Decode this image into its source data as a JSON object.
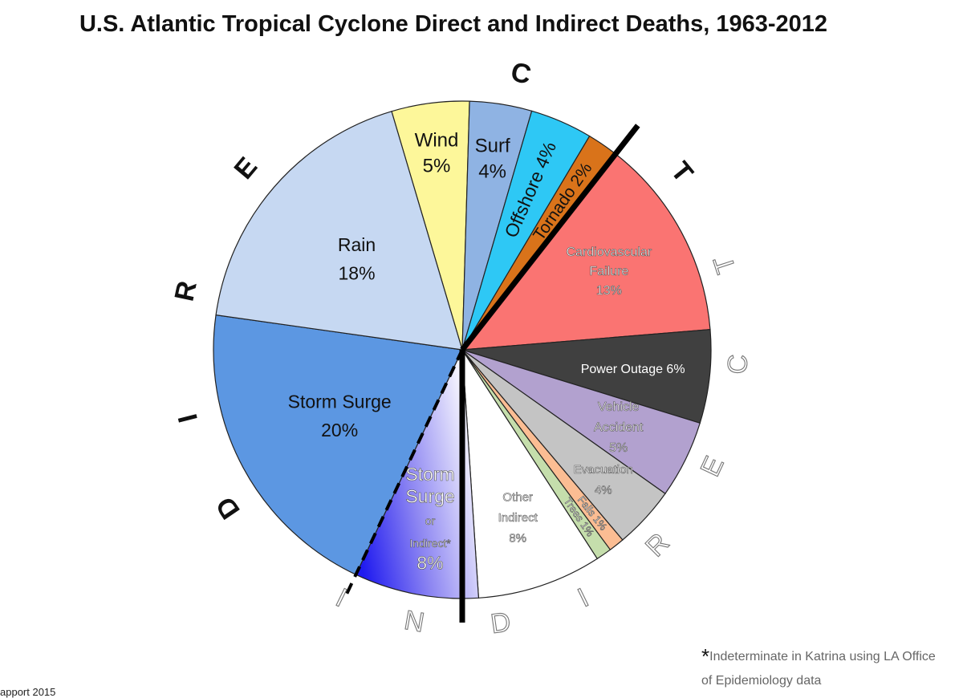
{
  "chart_data": {
    "type": "pie",
    "title": "U.S. Atlantic Tropical Cyclone Direct and Indirect Deaths, 1963-2012",
    "unit": "%",
    "groups": [
      {
        "name": "DIRECT",
        "letters": [
          "D",
          "I",
          "R",
          "E",
          "C",
          "T"
        ]
      },
      {
        "name": "INDIRECT",
        "letters": [
          "I",
          "N",
          "D",
          "I",
          "R",
          "E",
          "C",
          "T"
        ]
      }
    ],
    "slices": [
      {
        "id": "wind",
        "lines": [
          "Wind",
          "5%"
        ],
        "value": 5,
        "color": "#fdf79a",
        "group": "DIRECT"
      },
      {
        "id": "surf",
        "lines": [
          "Surf",
          "4%"
        ],
        "value": 4,
        "color": "#8fb3e3",
        "group": "DIRECT"
      },
      {
        "id": "offshore",
        "lines": [
          "Offshore 4%"
        ],
        "value": 4,
        "color": "#2ec8f5",
        "group": "DIRECT"
      },
      {
        "id": "tornado",
        "lines": [
          "Tornado 2%"
        ],
        "value": 2,
        "color": "#d9731a",
        "group": "DIRECT"
      },
      {
        "id": "cardiovascular",
        "lines": [
          "Cardiovascular",
          "Failure",
          "13%"
        ],
        "value": 13,
        "color": "#fa7472",
        "group": "INDIRECT"
      },
      {
        "id": "power-outage",
        "lines": [
          "Power Outage 6%"
        ],
        "value": 6,
        "color": "#404040",
        "group": "INDIRECT"
      },
      {
        "id": "vehicle-accident",
        "lines": [
          "Vehicle",
          "Accident",
          "5%"
        ],
        "value": 5,
        "color": "#b2a1cf",
        "group": "INDIRECT"
      },
      {
        "id": "evacuation",
        "lines": [
          "Evacuation",
          "4%"
        ],
        "value": 4,
        "color": "#c4c4c4",
        "group": "INDIRECT"
      },
      {
        "id": "falls",
        "lines": [
          "Falls 1%"
        ],
        "value": 1,
        "color": "#fbbd93",
        "group": "INDIRECT"
      },
      {
        "id": "trees",
        "lines": [
          "Trees 1%"
        ],
        "value": 1,
        "color": "#c5deac",
        "group": "INDIRECT"
      },
      {
        "id": "other-indirect",
        "lines": [
          "Other",
          "Indirect",
          "8%"
        ],
        "value": 8,
        "color": "#ffffff",
        "group": "INDIRECT"
      },
      {
        "id": "storm-surge-or-indirect",
        "lines": [
          "Storm",
          "Surge",
          "or",
          "Indirect*",
          "8%"
        ],
        "value": 8,
        "color": "#7a6cf5",
        "group": "DIRECT or INDIRECT"
      },
      {
        "id": "storm-surge",
        "lines": [
          "Storm Surge",
          "20%"
        ],
        "value": 20,
        "color": "#5c97e2",
        "group": "DIRECT"
      },
      {
        "id": "rain",
        "lines": [
          "Rain",
          "18%"
        ],
        "value": 18,
        "color": "#c6d8f2",
        "group": "DIRECT"
      }
    ]
  },
  "footnote": {
    "star": "*",
    "text": "Indeterminate in Katrina using LA Office of Epidemiology data"
  },
  "credit": "apport 2015"
}
